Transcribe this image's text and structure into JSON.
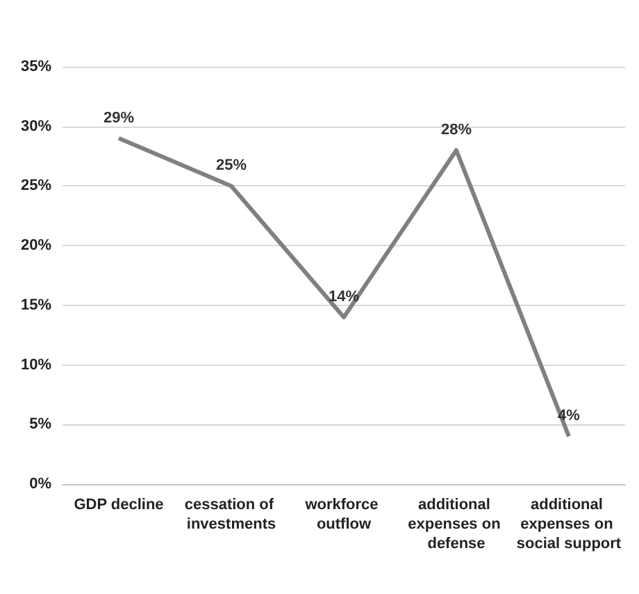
{
  "chart_data": {
    "type": "line",
    "categories": [
      "GDP decline",
      "cessation of investments",
      "workforce outflow",
      "additional expenses on defense",
      "additional expenses on social support"
    ],
    "series": [
      {
        "color": "#808080",
        "values": [
          29,
          25,
          14,
          28,
          4
        ],
        "value_labels": [
          "29%",
          "25%",
          "14%",
          "28%",
          "4%"
        ]
      }
    ],
    "ylim": [
      0,
      35
    ],
    "yticks": [
      {
        "value": 0,
        "label": "0%"
      },
      {
        "value": 5,
        "label": "5%"
      },
      {
        "value": 10,
        "label": "10%"
      },
      {
        "value": 15,
        "label": "15%"
      },
      {
        "value": 20,
        "label": "20%"
      },
      {
        "value": 25,
        "label": "25%"
      },
      {
        "value": 30,
        "label": "30%"
      },
      {
        "value": 35,
        "label": "35%"
      }
    ],
    "grid": "y",
    "marker": "none",
    "line_style": "solid"
  }
}
